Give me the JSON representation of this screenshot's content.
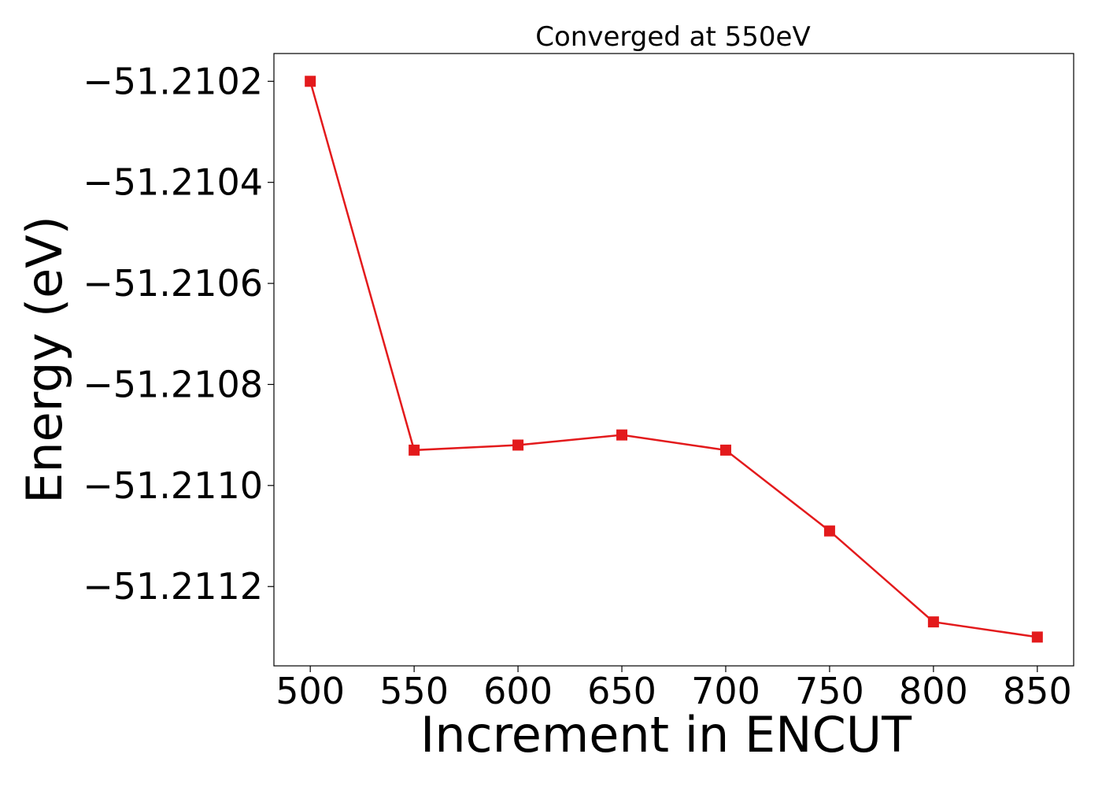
{
  "chart_data": {
    "type": "line",
    "title": "Converged at 550eV",
    "xlabel": "Increment in ENCUT",
    "ylabel": "Energy (eV)",
    "x": [
      500,
      550,
      600,
      650,
      700,
      750,
      800,
      850
    ],
    "series": [
      {
        "values": [
          -51.2102,
          -51.21093,
          -51.21092,
          -51.2109,
          -51.21093,
          -51.21109,
          -51.21127,
          -51.2113
        ],
        "color": "#e31a1c",
        "marker": "square"
      }
    ],
    "xticks": [
      500,
      550,
      600,
      650,
      700,
      750,
      800,
      850
    ],
    "xtick_labels": [
      "500",
      "550",
      "600",
      "650",
      "700",
      "750",
      "800",
      "850"
    ],
    "yticks": [
      -51.2102,
      -51.2104,
      -51.2106,
      -51.2108,
      -51.211,
      -51.2112
    ],
    "ytick_labels": [
      "−51.2102",
      "−51.2104",
      "−51.2106",
      "−51.2108",
      "−51.2110",
      "−51.2112"
    ],
    "xlim": [
      482.5,
      867.5
    ],
    "ylim": [
      -51.211357,
      -51.210145
    ],
    "grid": false,
    "legend": false
  }
}
